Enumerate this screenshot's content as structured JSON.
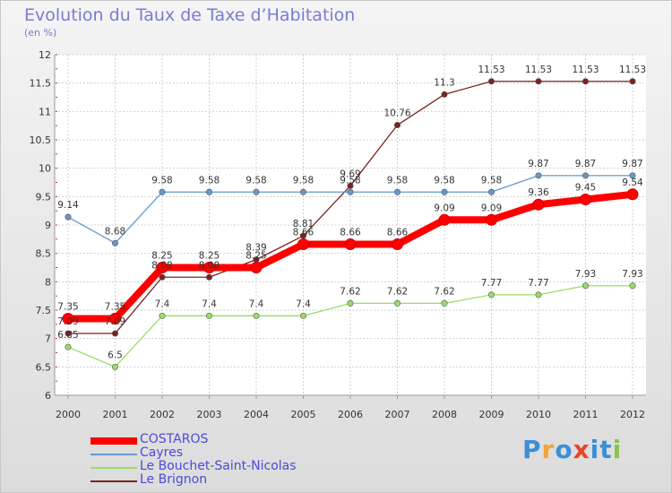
{
  "header": {
    "title": "Evolution du Taux de Taxe d’Habitation",
    "subtitle": "(en %)"
  },
  "chart_data": {
    "type": "line",
    "x": [
      "2000",
      "2001",
      "2002",
      "2003",
      "2004",
      "2005",
      "2006",
      "2007",
      "2008",
      "2009",
      "2010",
      "2011",
      "2012"
    ],
    "ylim": [
      6,
      12
    ],
    "yticks": [
      "6",
      "6.5",
      "7",
      "7.5",
      "8",
      "8.5",
      "9",
      "9.5",
      "10",
      "10.5",
      "11",
      "11.5",
      "12"
    ],
    "grid": true,
    "legend_position": "bottom-left",
    "series": [
      {
        "name": "COSTAROS",
        "color": "#ff0000",
        "values": [
          7.35,
          7.35,
          8.25,
          8.25,
          8.25,
          8.66,
          8.66,
          8.66,
          9.09,
          9.09,
          9.36,
          9.45,
          9.54
        ],
        "labels": [
          "7.35",
          "7.35",
          "8.25",
          "8.25",
          "8.25",
          "8.66",
          "8.66",
          "8.66",
          "9.09",
          "9.09",
          "9.36",
          "9.45",
          "9.54"
        ]
      },
      {
        "name": "Cayres",
        "color": "#6699cc",
        "values": [
          9.14,
          8.68,
          9.58,
          9.58,
          9.58,
          9.58,
          9.58,
          9.58,
          9.58,
          9.58,
          9.87,
          9.87,
          9.87
        ],
        "labels": [
          "9.14",
          "8.68",
          "9.58",
          "9.58",
          "9.58",
          "9.58",
          "9.58",
          "9.58",
          "9.58",
          "9.58",
          "9.87",
          "9.87",
          "9.87"
        ]
      },
      {
        "name": "Le Bouchet-Saint-Nicolas",
        "color": "#99dd66",
        "values": [
          6.85,
          6.5,
          7.4,
          7.4,
          7.4,
          7.4,
          7.62,
          7.62,
          7.62,
          7.77,
          7.77,
          7.93,
          7.93
        ],
        "labels": [
          "6.85",
          "6.5",
          "7.4",
          "7.4",
          "7.4",
          "7.4",
          "7.62",
          "7.62",
          "7.62",
          "7.77",
          "7.77",
          "7.93",
          "7.93"
        ]
      },
      {
        "name": "Le Brignon",
        "color": "#7a2222",
        "values": [
          7.09,
          7.09,
          8.08,
          8.08,
          8.39,
          8.81,
          9.69,
          10.76,
          11.3,
          11.53,
          11.53,
          11.53,
          11.53
        ],
        "labels": [
          "7.09",
          "7.09",
          "8.08",
          "8.08",
          "8.39",
          "8.81",
          "9.69",
          "10.76",
          "11.3",
          "11.53",
          "11.53",
          "11.53",
          "11.53"
        ]
      }
    ]
  },
  "legend": {
    "items": [
      {
        "label": "COSTAROS"
      },
      {
        "label": "Cayres"
      },
      {
        "label": "Le Bouchet-Saint-Nicolas"
      },
      {
        "label": "Le Brignon"
      }
    ]
  },
  "logo": {
    "text": "Proxiti"
  }
}
